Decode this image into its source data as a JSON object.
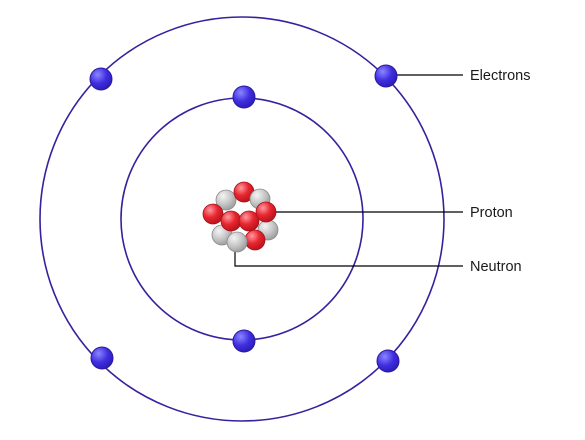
{
  "diagram": {
    "labels": {
      "electrons": "Electrons",
      "proton": "Proton",
      "neutron": "Neutron"
    },
    "colors": {
      "orbit": "#3a1f9e",
      "electron": "#3f2ee0",
      "electron_highlight": "#8b86ff",
      "proton": "#e8262f",
      "proton_highlight": "#ff9aa0",
      "neutron": "#c6c6c6",
      "neutron_highlight": "#f4f4f4",
      "leader_line": "#000000",
      "text": "#1a1a1a"
    }
  }
}
